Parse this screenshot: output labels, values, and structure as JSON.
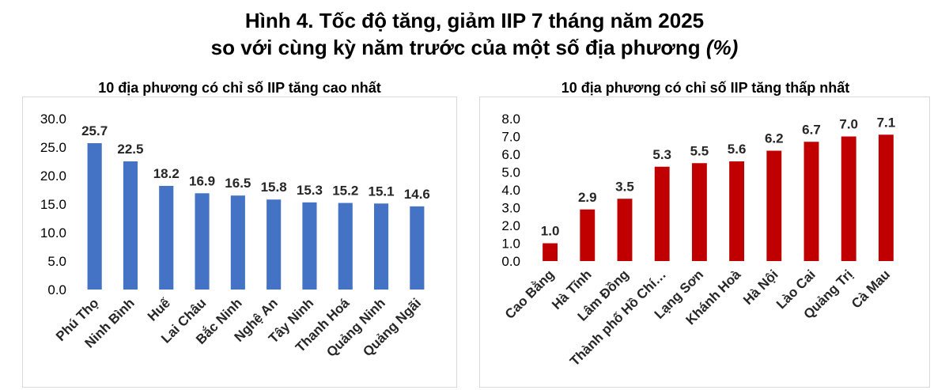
{
  "figure": {
    "title_line1": "Hình 4. Tốc độ tăng, giảm IIP 7 tháng năm 2025",
    "title_line2": "so với cùng kỳ năm trước của một số địa phương",
    "title_unit": "(%)"
  },
  "chart_data": [
    {
      "type": "bar",
      "title": "10 địa phương có chỉ số IIP tăng cao nhất",
      "categories": [
        "Phú Thọ",
        "Ninh Bình",
        "Huế",
        "Lai Châu",
        "Bắc Ninh",
        "Nghệ An",
        "Tây Ninh",
        "Thanh Hoá",
        "Quảng Ninh",
        "Quảng Ngãi"
      ],
      "values": [
        25.7,
        22.5,
        18.2,
        16.9,
        16.5,
        15.8,
        15.3,
        15.2,
        15.1,
        14.6
      ],
      "value_labels": [
        "25.7",
        "22.5",
        "18.2",
        "16.9",
        "16.5",
        "15.8",
        "15.3",
        "15.2",
        "15.1",
        "14.6"
      ],
      "yticks": [
        "0.0",
        "5.0",
        "10.0",
        "15.0",
        "20.0",
        "25.0",
        "30.0"
      ],
      "ylim": [
        0,
        30
      ],
      "color": "#4472c4",
      "grid": false,
      "legend": "none"
    },
    {
      "type": "bar",
      "title": "10 địa phương có chỉ số IIP tăng thấp nhất",
      "categories": [
        "Cao Bằng",
        "Hà Tĩnh",
        "Lâm Đồng",
        "Thành phố Hồ Chí…",
        "Lạng Sơn",
        "Khánh Hoà",
        "Hà Nội",
        "Lào Cai",
        "Quảng Trị",
        "Cà Mau"
      ],
      "values": [
        1.0,
        2.9,
        3.5,
        5.3,
        5.5,
        5.6,
        6.2,
        6.7,
        7.0,
        7.1
      ],
      "value_labels": [
        "1.0",
        "2.9",
        "3.5",
        "5.3",
        "5.5",
        "5.6",
        "6.2",
        "6.7",
        "7.0",
        "7.1"
      ],
      "yticks": [
        "0.0",
        "1.0",
        "2.0",
        "3.0",
        "4.0",
        "5.0",
        "6.0",
        "7.0",
        "8.0"
      ],
      "ylim": [
        0,
        8
      ],
      "color": "#c00000",
      "grid": false,
      "legend": "none"
    }
  ]
}
